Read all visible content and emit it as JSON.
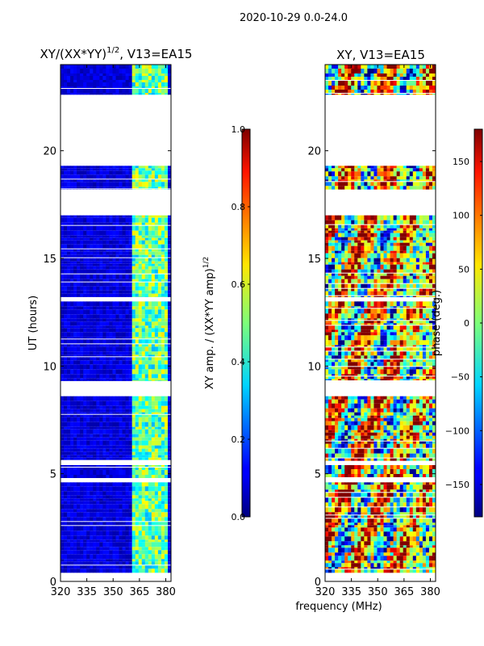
{
  "figure": {
    "suptitle": "2020-10-29 0.0-24.0",
    "shared_xlabel": "frequency (MHz)"
  },
  "chart_data": [
    {
      "type": "heatmap",
      "title_main": "XY/(XX*YY)",
      "title_sup": "1/2",
      "title_tail": ", V13=EA15",
      "xlabel": "frequency (MHz)",
      "ylabel": "UT (hours)",
      "x_ticks": [
        "320",
        "335",
        "350",
        "365",
        "380"
      ],
      "x_tick_values": [
        320,
        335,
        350,
        365,
        380
      ],
      "y_ticks": [
        "0",
        "5",
        "10",
        "15",
        "20"
      ],
      "y_tick_values": [
        0,
        5,
        10,
        15,
        20
      ],
      "xlim": [
        320,
        383
      ],
      "ylim": [
        0,
        24
      ],
      "data_blocks_ut": [
        [
          0.4,
          4.6
        ],
        [
          4.8,
          5.4
        ],
        [
          5.6,
          8.6
        ],
        [
          9.3,
          13.0
        ],
        [
          13.2,
          17.0
        ],
        [
          18.2,
          19.3
        ],
        [
          22.6,
          24.0
        ]
      ],
      "bright_band_mhz": [
        361,
        382
      ],
      "colorbar": {
        "label_main": "XY amp. / (XX*YY amp)",
        "label_sup": "1/2",
        "ticks": [
          "0.0",
          "0.2",
          "0.4",
          "0.6",
          "0.8",
          "1.0"
        ],
        "tick_values": [
          0.0,
          0.2,
          0.4,
          0.6,
          0.8,
          1.0
        ],
        "range": [
          0.0,
          1.0
        ]
      }
    },
    {
      "type": "heatmap",
      "title_main": "XY, V13=EA15",
      "xlabel": "frequency (MHz)",
      "ylabel": "",
      "x_ticks": [
        "320",
        "335",
        "350",
        "365",
        "380"
      ],
      "x_tick_values": [
        320,
        335,
        350,
        365,
        380
      ],
      "y_ticks": [
        "0",
        "5",
        "10",
        "15",
        "20"
      ],
      "y_tick_values": [
        0,
        5,
        10,
        15,
        20
      ],
      "xlim": [
        320,
        383
      ],
      "ylim": [
        0,
        24
      ],
      "data_blocks_ut": [
        [
          0.4,
          4.6
        ],
        [
          4.8,
          5.4
        ],
        [
          5.6,
          8.6
        ],
        [
          9.3,
          13.0
        ],
        [
          13.2,
          17.0
        ],
        [
          18.2,
          19.3
        ],
        [
          22.6,
          24.0
        ]
      ],
      "colorbar": {
        "label_main": "phase (deg.)",
        "ticks": [
          "−150",
          "−100",
          "−50",
          "0",
          "50",
          "100",
          "150"
        ],
        "tick_values": [
          -150,
          -100,
          -50,
          0,
          50,
          100,
          150
        ],
        "range": [
          -180,
          180
        ]
      }
    }
  ]
}
